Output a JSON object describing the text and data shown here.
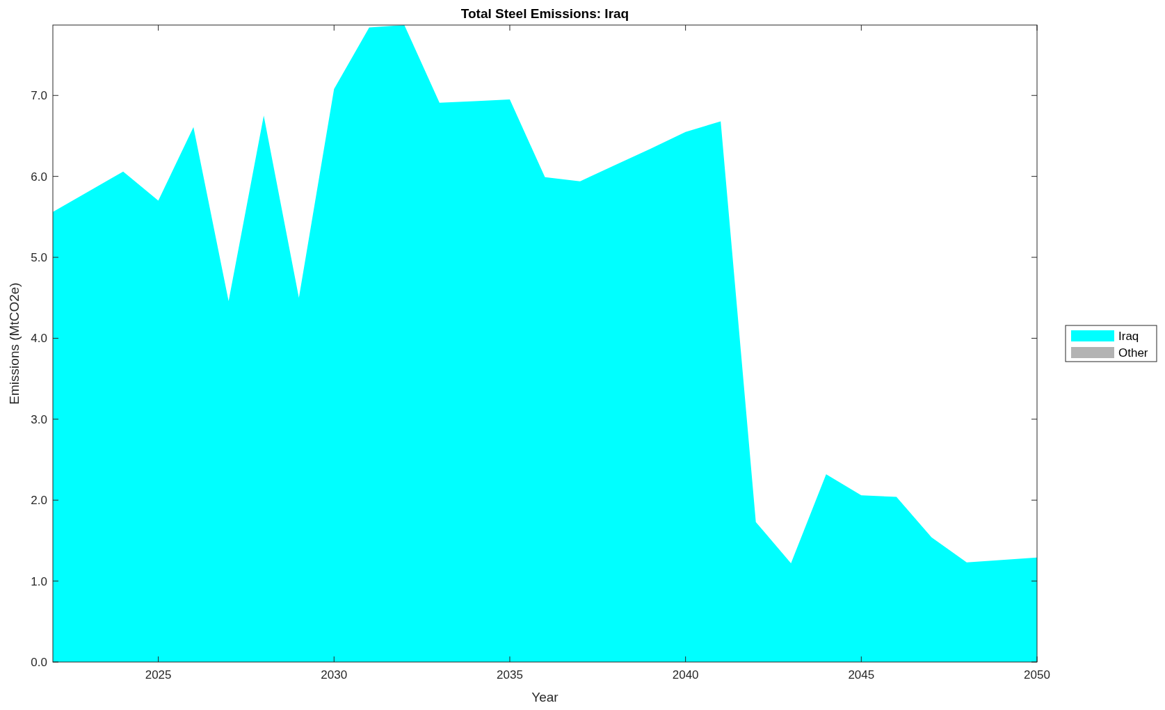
{
  "chart_data": {
    "type": "area",
    "title": "Total Steel Emissions: Iraq",
    "xlabel": "Year",
    "ylabel": "Emissions (MtCO2e)",
    "x": [
      2022,
      2023,
      2024,
      2025,
      2026,
      2027,
      2028,
      2029,
      2030,
      2031,
      2032,
      2033,
      2034,
      2035,
      2036,
      2037,
      2038,
      2039,
      2040,
      2041,
      2042,
      2043,
      2044,
      2045,
      2046,
      2047,
      2048,
      2049,
      2050
    ],
    "series": [
      {
        "name": "Iraq",
        "color": "#00ffff",
        "values": [
          5.56,
          5.81,
          6.06,
          5.7,
          6.61,
          4.46,
          6.75,
          4.5,
          7.08,
          7.84,
          7.87,
          6.91,
          6.93,
          6.95,
          5.99,
          5.94,
          6.14,
          6.34,
          6.55,
          6.68,
          1.73,
          1.22,
          2.32,
          2.06,
          2.04,
          1.54,
          1.23,
          1.26,
          1.29
        ]
      },
      {
        "name": "Other",
        "color": "#b3b3b3",
        "values": [
          null,
          null,
          null,
          null,
          null,
          null,
          null,
          null,
          null,
          null,
          null,
          null,
          null,
          null,
          null,
          null,
          null,
          null,
          null,
          null,
          null,
          null,
          null,
          null,
          null,
          null,
          null,
          null,
          null
        ]
      }
    ],
    "xlim": [
      2022,
      2050
    ],
    "xticks": [
      2025,
      2030,
      2035,
      2040,
      2045,
      2050
    ],
    "ylim": [
      0,
      7.87
    ],
    "yticks": [
      {
        "value": 0,
        "label": "0.0"
      },
      {
        "value": 1,
        "label": "1.0"
      },
      {
        "value": 2,
        "label": "2.0"
      },
      {
        "value": 3,
        "label": "3.0"
      },
      {
        "value": 4,
        "label": "4.0"
      },
      {
        "value": 5,
        "label": "5.0"
      },
      {
        "value": 6,
        "label": "6.0"
      },
      {
        "value": 7,
        "label": "7.0"
      }
    ],
    "grid": false,
    "legend": "right"
  }
}
